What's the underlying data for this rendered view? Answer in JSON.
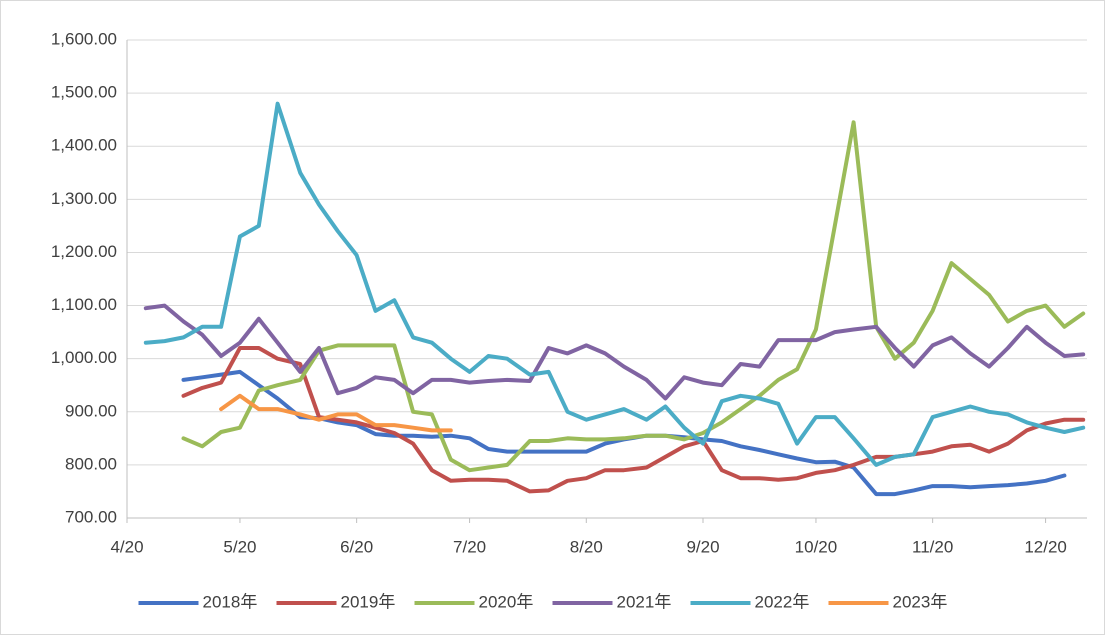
{
  "chart_data": {
    "type": "line",
    "x": [
      "4/25",
      "4/30",
      "5/5",
      "5/10",
      "5/15",
      "5/20",
      "5/25",
      "5/30",
      "6/5",
      "6/10",
      "6/15",
      "6/20",
      "6/25",
      "6/30",
      "7/5",
      "7/10",
      "7/15",
      "7/20",
      "7/25",
      "7/30",
      "8/5",
      "8/10",
      "8/15",
      "8/20",
      "8/25",
      "8/30",
      "9/5",
      "9/10",
      "9/15",
      "9/20",
      "9/25",
      "9/30",
      "10/5",
      "10/10",
      "10/15",
      "10/20",
      "10/25",
      "10/30",
      "11/5",
      "11/10",
      "11/15",
      "11/20",
      "11/25",
      "11/30",
      "12/5",
      "12/10",
      "12/15",
      "12/20",
      "12/25",
      "12/30"
    ],
    "xlim": [
      "4/20",
      "12/31"
    ],
    "xticks": [
      "4/20",
      "5/20",
      "6/20",
      "7/20",
      "8/20",
      "9/20",
      "10/20",
      "11/20",
      "12/20"
    ],
    "ylim": [
      700,
      1600
    ],
    "yticks": [
      {
        "value": 700,
        "label": "700.00"
      },
      {
        "value": 800,
        "label": "800.00"
      },
      {
        "value": 900,
        "label": "900.00"
      },
      {
        "value": 1000,
        "label": "1,000.00"
      },
      {
        "value": 1100,
        "label": "1,100.00"
      },
      {
        "value": 1200,
        "label": "1,200.00"
      },
      {
        "value": 1300,
        "label": "1,300.00"
      },
      {
        "value": 1400,
        "label": "1,400.00"
      },
      {
        "value": 1500,
        "label": "1,500.00"
      },
      {
        "value": 1600,
        "label": "1,600.00"
      }
    ],
    "grid": true,
    "legend": "bottom",
    "series": [
      {
        "name": "2018年",
        "color": "#4472c4",
        "values": [
          null,
          null,
          960,
          965,
          970,
          975,
          950,
          925,
          890,
          888,
          880,
          875,
          858,
          855,
          855,
          853,
          855,
          850,
          830,
          825,
          825,
          825,
          825,
          825,
          840,
          848,
          855,
          855,
          852,
          848,
          845,
          835,
          828,
          820,
          812,
          805,
          806,
          795,
          745,
          745,
          752,
          760,
          760,
          758,
          760,
          762,
          765,
          770,
          780,
          null
        ]
      },
      {
        "name": "2019年",
        "color": "#c0504d",
        "values": [
          null,
          null,
          930,
          945,
          955,
          1020,
          1020,
          1000,
          990,
          890,
          885,
          880,
          870,
          860,
          840,
          790,
          770,
          772,
          772,
          770,
          750,
          752,
          770,
          775,
          790,
          790,
          795,
          815,
          835,
          845,
          790,
          775,
          775,
          772,
          775,
          785,
          790,
          800,
          815,
          815,
          820,
          825,
          835,
          838,
          825,
          840,
          865,
          878,
          885,
          885
        ]
      },
      {
        "name": "2020年",
        "color": "#9bbb59",
        "values": [
          null,
          null,
          850,
          835,
          862,
          870,
          940,
          950,
          960,
          1015,
          1025,
          1025,
          1025,
          1025,
          900,
          895,
          810,
          790,
          795,
          800,
          845,
          845,
          850,
          848,
          848,
          850,
          855,
          855,
          848,
          860,
          880,
          905,
          930,
          960,
          980,
          1055,
          1250,
          1445,
          1060,
          1000,
          1030,
          1090,
          1180,
          1150,
          1120,
          1070,
          1090,
          1100,
          1060,
          1085
        ]
      },
      {
        "name": "2021年",
        "color": "#8064a2",
        "values": [
          1095,
          1100,
          1070,
          1045,
          1005,
          1030,
          1075,
          1030,
          975,
          1020,
          935,
          945,
          965,
          960,
          935,
          960,
          960,
          955,
          958,
          960,
          958,
          1020,
          1010,
          1025,
          1010,
          985,
          960,
          925,
          965,
          955,
          950,
          990,
          985,
          1035,
          1035,
          1035,
          1050,
          1055,
          1060,
          1020,
          985,
          1025,
          1040,
          1010,
          985,
          1020,
          1060,
          1030,
          1005,
          1008
        ]
      },
      {
        "name": "2022年",
        "color": "#4bacc6",
        "values": [
          1030,
          1033,
          1040,
          1060,
          1060,
          1230,
          1250,
          1480,
          1350,
          1290,
          1240,
          1195,
          1090,
          1110,
          1040,
          1030,
          1000,
          975,
          1005,
          1000,
          970,
          975,
          900,
          885,
          895,
          905,
          885,
          910,
          870,
          840,
          920,
          930,
          925,
          915,
          840,
          890,
          890,
          850,
          800,
          815,
          820,
          890,
          900,
          910,
          900,
          895,
          880,
          870,
          862,
          870
        ]
      },
      {
        "name": "2023年",
        "color": "#f79646",
        "values": [
          null,
          null,
          null,
          null,
          905,
          930,
          905,
          905,
          895,
          885,
          895,
          895,
          875,
          875,
          870,
          865,
          865,
          null,
          null,
          null,
          null,
          null,
          null,
          null,
          null,
          null,
          null,
          null,
          null,
          null,
          null,
          null,
          null,
          null,
          null,
          null,
          null,
          null,
          null,
          null,
          null,
          null,
          null,
          null,
          null,
          null,
          null,
          null,
          null,
          null
        ]
      }
    ]
  }
}
